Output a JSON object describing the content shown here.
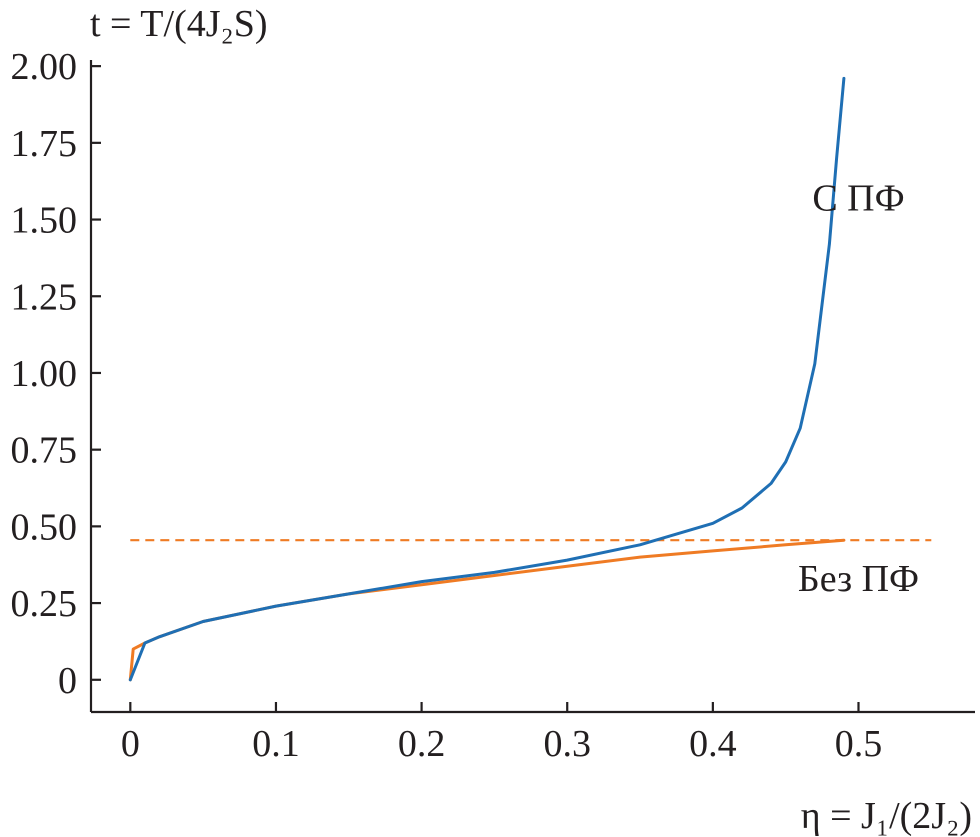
{
  "chart_data": {
    "type": "line",
    "title": "",
    "ylabel": "t = T/(4J₂S)",
    "xlabel": "η = J₁/(2J₂)",
    "xlim": [
      -0.027,
      0.58
    ],
    "ylim": [
      -0.105,
      2.02
    ],
    "xticks": [
      0,
      0.1,
      0.2,
      0.3,
      0.4,
      0.5
    ],
    "xtick_labels": [
      "0",
      "0.1",
      "0.2",
      "0.3",
      "0.4",
      "0.5"
    ],
    "yticks": [
      0,
      0.25,
      0.5,
      0.75,
      1.0,
      1.25,
      1.5,
      1.75,
      2.0
    ],
    "ytick_labels": [
      "0",
      "0.25",
      "0.50",
      "0.75",
      "1.00",
      "1.25",
      "1.50",
      "1.75",
      "2.00"
    ],
    "grid": false,
    "legend": "none",
    "series": [
      {
        "name": "С ПФ",
        "color": "#1f6fb4",
        "style": "solid",
        "x": [
          0.0,
          0.01,
          0.02,
          0.05,
          0.1,
          0.15,
          0.2,
          0.25,
          0.3,
          0.35,
          0.4,
          0.42,
          0.44,
          0.45,
          0.46,
          0.47,
          0.48,
          0.485,
          0.49
        ],
        "y": [
          0.0,
          0.12,
          0.14,
          0.19,
          0.24,
          0.28,
          0.32,
          0.35,
          0.39,
          0.44,
          0.51,
          0.56,
          0.64,
          0.71,
          0.82,
          1.03,
          1.42,
          1.7,
          1.96
        ]
      },
      {
        "name": "Без ПФ",
        "color": "#ef7b24",
        "style": "solid",
        "x": [
          0.0,
          0.002,
          0.01,
          0.02,
          0.05,
          0.1,
          0.15,
          0.2,
          0.25,
          0.3,
          0.35,
          0.4,
          0.45,
          0.49
        ],
        "y": [
          0.0,
          0.1,
          0.12,
          0.14,
          0.19,
          0.24,
          0.28,
          0.31,
          0.34,
          0.37,
          0.4,
          0.42,
          0.44,
          0.455
        ]
      },
      {
        "color": "#ef7b24",
        "style": "dashed",
        "x": [
          0.0,
          0.55
        ],
        "y": [
          0.455,
          0.455
        ]
      }
    ],
    "annotations": [
      {
        "text": "С ПФ",
        "x": 0.5,
        "y": 1.53
      },
      {
        "text": "Без ПФ",
        "x": 0.5,
        "y": 0.29
      }
    ]
  }
}
